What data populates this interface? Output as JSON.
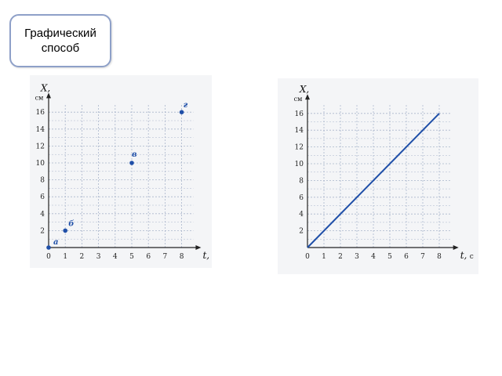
{
  "slide": {
    "title": "Графический способ"
  },
  "colors": {
    "accent": "#1f4fa8",
    "grid": "#aab6cc",
    "axis": "#222222",
    "title_border": "#8ea0c8"
  },
  "chart_data": [
    {
      "type": "scatter",
      "xlabel": "t,",
      "xunit": "с",
      "ylabel": "X,",
      "yunit": "см",
      "xlim": [
        0,
        8.7
      ],
      "ylim": [
        0,
        17
      ],
      "x_ticks": [
        0,
        1,
        2,
        3,
        4,
        5,
        6,
        7,
        8
      ],
      "y_ticks": [
        2,
        4,
        6,
        8,
        10,
        12,
        14,
        16
      ],
      "grid": true,
      "points": [
        {
          "label": "а",
          "x": 0,
          "y": 0
        },
        {
          "label": "б",
          "x": 1,
          "y": 2
        },
        {
          "label": "в",
          "x": 5,
          "y": 10
        },
        {
          "label": "г",
          "x": 8,
          "y": 16
        }
      ]
    },
    {
      "type": "line",
      "xlabel": "t,",
      "xunit": "с",
      "ylabel": "X,",
      "yunit": "см",
      "xlim": [
        0,
        8.7
      ],
      "ylim": [
        0,
        17
      ],
      "x_ticks": [
        0,
        1,
        2,
        3,
        4,
        5,
        6,
        7,
        8
      ],
      "y_ticks": [
        2,
        4,
        6,
        8,
        10,
        12,
        14,
        16
      ],
      "grid": true,
      "series": [
        {
          "x": [
            0,
            8
          ],
          "y": [
            0,
            16
          ]
        }
      ]
    }
  ]
}
